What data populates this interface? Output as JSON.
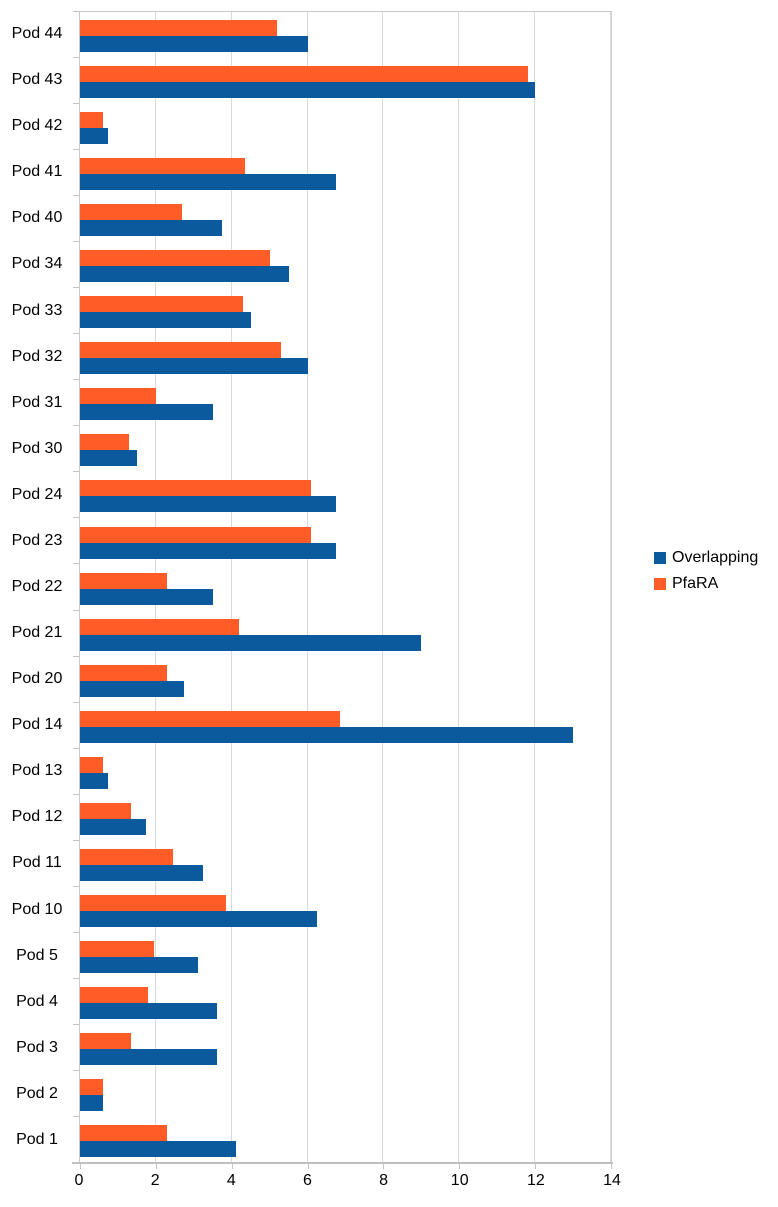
{
  "chart_data": {
    "type": "bar",
    "orientation": "horizontal",
    "title": "",
    "xlabel": "",
    "ylabel": "",
    "categories": [
      "Pod 44",
      "Pod 43",
      "Pod 42",
      "Pod 41",
      "Pod 40",
      "Pod 34",
      "Pod 33",
      "Pod 32",
      "Pod 31",
      "Pod 30",
      "Pod 24",
      "Pod 23",
      "Pod 22",
      "Pod 21",
      "Pod 20",
      "Pod 14",
      "Pod 13",
      "Pod 12",
      "Pod 11",
      "Pod 10",
      "Pod 5",
      "Pod 4",
      "Pod 3",
      "Pod 2",
      "Pod 1"
    ],
    "series": [
      {
        "name": "Overlapping",
        "color": "#0c5a9e",
        "values": [
          6.0,
          12.0,
          0.75,
          6.75,
          3.75,
          5.5,
          4.5,
          6.0,
          3.5,
          1.5,
          6.75,
          6.75,
          3.5,
          9.0,
          2.75,
          13.0,
          0.75,
          1.75,
          3.25,
          6.25,
          3.1,
          3.6,
          3.6,
          0.6,
          4.1
        ]
      },
      {
        "name": "PfaRA",
        "color": "#ff5c28",
        "values": [
          5.2,
          11.8,
          0.6,
          4.35,
          2.7,
          5.0,
          4.3,
          5.3,
          2.0,
          1.3,
          6.1,
          6.1,
          2.3,
          4.2,
          2.3,
          6.85,
          0.6,
          1.35,
          2.45,
          3.85,
          1.95,
          1.8,
          1.35,
          0.6,
          2.3
        ]
      }
    ],
    "xlim": [
      0,
      14
    ],
    "xticks": [
      0,
      2,
      4,
      6,
      8,
      10,
      12,
      14
    ],
    "grid": "vertical",
    "legend_position": "right-center",
    "bar_order_in_group": [
      "PfaRA",
      "Overlapping"
    ],
    "colors": {
      "gridline": "#d9d9d9",
      "axis": "#c0c0c0",
      "text": "#000000",
      "background": "#ffffff"
    }
  }
}
